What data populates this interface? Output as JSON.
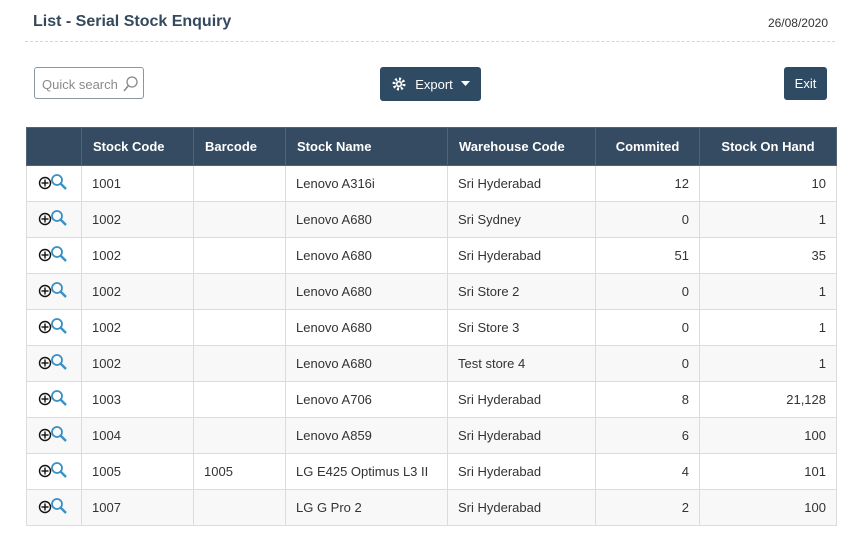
{
  "header": {
    "title": "List - Serial Stock Enquiry",
    "date": "26/08/2020"
  },
  "toolbar": {
    "search_placeholder": "Quick search",
    "export": "Export",
    "exit": "Exit"
  },
  "table": {
    "columns": [
      "Stock Code",
      "Barcode",
      "Stock Name",
      "Warehouse Code",
      "Commited",
      "Stock On Hand"
    ],
    "rows": [
      [
        "1001",
        null,
        "Lenovo A316i",
        "Sri Hyderabad",
        "12",
        "10"
      ],
      [
        "1002",
        null,
        "Lenovo A680",
        "Sri Sydney",
        "0",
        "1"
      ],
      [
        "1002",
        null,
        "Lenovo A680",
        "Sri Hyderabad",
        "51",
        "35"
      ],
      [
        "1002",
        null,
        "Lenovo A680",
        "Sri Store 2",
        "0",
        "1"
      ],
      [
        "1002",
        null,
        "Lenovo A680",
        "Sri Store 3",
        "0",
        "1"
      ],
      [
        "1002",
        null,
        "Lenovo A680",
        "Test store 4",
        "0",
        "1"
      ],
      [
        "1003",
        null,
        "Lenovo A706",
        "Sri Hyderabad",
        "8",
        "21,128"
      ],
      [
        "1004",
        null,
        "Lenovo A859",
        "Sri Hyderabad",
        "6",
        "100"
      ],
      [
        "1005",
        "1005",
        "LG E425 Optimus L3 II",
        "Sri Hyderabad",
        "4",
        "101"
      ],
      [
        "1007",
        null,
        "LG G Pro 2",
        "Sri Hyderabad",
        "2",
        "100"
      ]
    ]
  }
}
